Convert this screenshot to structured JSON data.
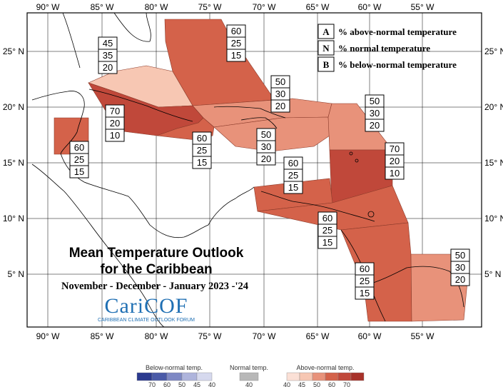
{
  "title": {
    "line1": "Mean Temperature Outlook",
    "line2": "for the Caribbean",
    "period": "November - December - January 2023 -'24"
  },
  "logo": {
    "name": "CariCOF",
    "tagline": "CARIBBEAN CLIMATE OUTLOOK FORUM"
  },
  "legend_key": [
    {
      "letter": "A",
      "text": "% above-normal temperature"
    },
    {
      "letter": "N",
      "text": "% normal temperature"
    },
    {
      "letter": "B",
      "text": "% below-normal temperature"
    }
  ],
  "axes": {
    "lon_labels": [
      "90° W",
      "85° W",
      "80° W",
      "75° W",
      "70° W",
      "65° W",
      "60° W",
      "55° W"
    ],
    "lat_labels": [
      "25° N",
      "20° N",
      "15° N",
      "10° N",
      "5° N"
    ]
  },
  "regions": [
    {
      "id": "bahamas",
      "probs": [
        "60",
        "25",
        "15"
      ],
      "color": "#d4624a"
    },
    {
      "id": "cuba-west",
      "probs": [
        "45",
        "35",
        "20"
      ],
      "color": "#f7c7b3"
    },
    {
      "id": "cuba-jamaica",
      "probs": [
        "70",
        "20",
        "10"
      ],
      "color": "#c0483a"
    },
    {
      "id": "yucatan-belize",
      "probs": [
        "60",
        "25",
        "15"
      ],
      "color": "#d4624a"
    },
    {
      "id": "cayman-jamaica",
      "probs": [
        "60",
        "25",
        "15"
      ],
      "color": "#d4624a"
    },
    {
      "id": "hispaniola-north",
      "probs": [
        "50",
        "30",
        "20"
      ],
      "color": "#e8927a"
    },
    {
      "id": "hispaniola-south",
      "probs": [
        "50",
        "30",
        "20"
      ],
      "color": "#e8927a"
    },
    {
      "id": "leeward-islands",
      "probs": [
        "50",
        "30",
        "20"
      ],
      "color": "#e8927a"
    },
    {
      "id": "windward-islands",
      "probs": [
        "70",
        "20",
        "10"
      ],
      "color": "#c0483a"
    },
    {
      "id": "abc-islands",
      "probs": [
        "60",
        "25",
        "15"
      ],
      "color": "#d4624a"
    },
    {
      "id": "trinidad-venezuela",
      "probs": [
        "60",
        "25",
        "15"
      ],
      "color": "#d4624a"
    },
    {
      "id": "guyana",
      "probs": [
        "60",
        "25",
        "15"
      ],
      "color": "#d4624a"
    },
    {
      "id": "suriname-guiana",
      "probs": [
        "50",
        "30",
        "20"
      ],
      "color": "#e8927a"
    }
  ],
  "colorbar": {
    "below": {
      "title": "Below-normal temp.",
      "ticks": [
        "70",
        "60",
        "50",
        "45",
        "40"
      ],
      "colors": [
        "#2b3a8f",
        "#4a5aa8",
        "#7e88c4",
        "#aeb4dc",
        "#d6d9ee"
      ]
    },
    "normal": {
      "title": "Normal temp.",
      "ticks": [
        "40"
      ],
      "colors": [
        "#b8b8b8"
      ]
    },
    "above": {
      "title": "Above-normal temp.",
      "ticks": [
        "40",
        "45",
        "50",
        "60",
        "70"
      ],
      "colors": [
        "#fbe0d6",
        "#f7c7b3",
        "#e8927a",
        "#d4624a",
        "#c0483a",
        "#a8322a"
      ]
    }
  }
}
